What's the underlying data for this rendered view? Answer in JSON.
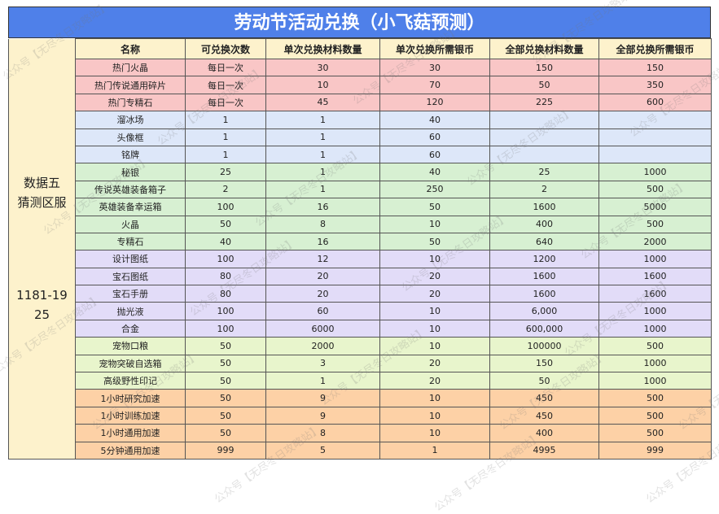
{
  "title": "劳动节活动兑换（小飞菇预测）",
  "side_label": {
    "line1": "数据五",
    "line2": "猜测区服",
    "range": "1181-1925"
  },
  "headers": [
    "名称",
    "可兑换次数",
    "单次兑换材料数量",
    "单次兑换所需银币",
    "全部兑换材料数量",
    "全部兑换所需银币"
  ],
  "rows": [
    {
      "group": "red",
      "cells": [
        "热门火晶",
        "每日一次",
        "30",
        "30",
        "150",
        "150"
      ]
    },
    {
      "group": "red",
      "cells": [
        "热门传说通用碎片",
        "每日一次",
        "10",
        "70",
        "50",
        "350"
      ]
    },
    {
      "group": "red",
      "cells": [
        "热门专精石",
        "每日一次",
        "45",
        "120",
        "225",
        "600"
      ]
    },
    {
      "group": "blue",
      "cells": [
        "溜冰场",
        "1",
        "1",
        "40",
        "",
        ""
      ]
    },
    {
      "group": "blue",
      "cells": [
        "头像框",
        "1",
        "1",
        "60",
        "",
        ""
      ]
    },
    {
      "group": "blue",
      "cells": [
        "铭牌",
        "1",
        "1",
        "60",
        "",
        ""
      ]
    },
    {
      "group": "green",
      "cells": [
        "秘银",
        "25",
        "1",
        "40",
        "25",
        "1000"
      ]
    },
    {
      "group": "green",
      "cells": [
        "传说英雄装备箱子",
        "2",
        "1",
        "250",
        "2",
        "500"
      ]
    },
    {
      "group": "green",
      "cells": [
        "英雄装备幸运箱",
        "100",
        "16",
        "50",
        "1600",
        "5000"
      ]
    },
    {
      "group": "green",
      "cells": [
        "火晶",
        "50",
        "8",
        "10",
        "400",
        "500"
      ]
    },
    {
      "group": "green",
      "cells": [
        "专精石",
        "40",
        "16",
        "50",
        "640",
        "2000"
      ]
    },
    {
      "group": "purple",
      "cells": [
        "设计图纸",
        "100",
        "12",
        "10",
        "1200",
        "1000"
      ]
    },
    {
      "group": "purple",
      "cells": [
        "宝石图纸",
        "80",
        "20",
        "20",
        "1600",
        "1600"
      ]
    },
    {
      "group": "purple",
      "cells": [
        "宝石手册",
        "80",
        "20",
        "20",
        "1600",
        "1600"
      ]
    },
    {
      "group": "purple",
      "cells": [
        "抛光液",
        "100",
        "60",
        "10",
        "6,000",
        "1000"
      ]
    },
    {
      "group": "purple",
      "cells": [
        "合金",
        "100",
        "6000",
        "10",
        "600,000",
        "1000"
      ]
    },
    {
      "group": "lime",
      "cells": [
        "宠物口粮",
        "50",
        "2000",
        "10",
        "100000",
        "500"
      ]
    },
    {
      "group": "lime",
      "cells": [
        "宠物突破自选箱",
        "50",
        "3",
        "20",
        "150",
        "1000"
      ]
    },
    {
      "group": "lime",
      "cells": [
        "高级野性印记",
        "50",
        "1",
        "20",
        "50",
        "1000"
      ]
    },
    {
      "group": "orange",
      "cells": [
        "1小时研究加速",
        "50",
        "9",
        "10",
        "450",
        "500"
      ]
    },
    {
      "group": "orange",
      "cells": [
        "1小时训练加速",
        "50",
        "9",
        "10",
        "450",
        "500"
      ]
    },
    {
      "group": "orange",
      "cells": [
        "1小时通用加速",
        "50",
        "8",
        "10",
        "400",
        "500"
      ]
    },
    {
      "group": "orange",
      "cells": [
        "5分钟通用加速",
        "999",
        "5",
        "1",
        "4995",
        "999"
      ]
    }
  ],
  "colors": {
    "title": "#4f80e9",
    "header": "#fdf2cc",
    "red": "#f9c6c6",
    "blue": "#dde7f9",
    "green": "#d7f0d2",
    "purple": "#e2dcf8",
    "lime": "#e8f5cc",
    "orange": "#fdd1a6"
  },
  "watermark": "公众号【无尽冬日攻略站】"
}
